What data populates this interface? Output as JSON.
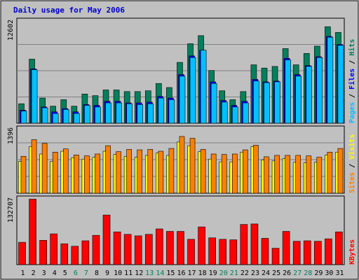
{
  "chart_data": {
    "type": "bar",
    "title": "Daily usage for May 2006",
    "categories": [
      "1",
      "2",
      "3",
      "4",
      "5",
      "6",
      "7",
      "8",
      "9",
      "10",
      "11",
      "12",
      "13",
      "14",
      "15",
      "16",
      "17",
      "18",
      "19",
      "20",
      "21",
      "22",
      "23",
      "24",
      "25",
      "26",
      "27",
      "28",
      "29",
      "30",
      "31"
    ],
    "weekend_days": [
      "6",
      "7",
      "13",
      "14",
      "20",
      "21",
      "27",
      "28"
    ],
    "colors": {
      "background": "#c0c0c0",
      "hits": "#00805c",
      "files": "#0000ff",
      "pages": "#00c0ff",
      "visits": "#ffff00",
      "sites": "#ff8000",
      "kbytes": "#ff0000",
      "title": "#0000cc",
      "weekend_label": "#00805c",
      "weekday_label": "#000000"
    },
    "panels": [
      {
        "name": "hits-files-pages",
        "max_label": "12602",
        "ylim": [
          0,
          12602
        ],
        "legend": [
          "Pages",
          "Files",
          "Hits"
        ],
        "series": [
          {
            "name": "Hits",
            "color": "#00805c",
            "values": [
              2400,
              7900,
              3100,
              2100,
              2900,
              2100,
              3600,
              3400,
              4100,
              4100,
              3900,
              3900,
              4000,
              4900,
              4400,
              7500,
              9800,
              10800,
              6500,
              4000,
              2900,
              3900,
              7200,
              6800,
              7000,
              9200,
              7200,
              8600,
              9500,
              11900,
              11200
            ]
          },
          {
            "name": "Files",
            "color": "#0000ff",
            "values": [
              1600,
              6700,
              2000,
              1400,
              1800,
              1400,
              2300,
              2200,
              2700,
              2700,
              2500,
              2500,
              2600,
              3300,
              3100,
              6000,
              8300,
              9000,
              5100,
              2800,
              2200,
              2700,
              5400,
              5100,
              5200,
              8000,
              6000,
              7100,
              8200,
              10700,
              9700
            ]
          },
          {
            "name": "Pages",
            "color": "#00c0ff",
            "values": [
              1500,
              6600,
              1900,
              1200,
              1700,
              1200,
              2200,
              2000,
              2500,
              2500,
              2400,
              2300,
              2400,
              3100,
              2900,
              5800,
              8100,
              9000,
              4900,
              2600,
              2000,
              2500,
              5200,
              5000,
              5100,
              7800,
              5800,
              7000,
              8100,
              10600,
              9600
            ]
          }
        ]
      },
      {
        "name": "visits-sites",
        "max_label": "1396",
        "ylim": [
          0,
          1396
        ],
        "legend": [
          "Sites",
          "Visits"
        ],
        "series": [
          {
            "name": "Visits",
            "color": "#ffff00",
            "values": [
              690,
              1010,
              850,
              690,
              910,
              770,
              740,
              780,
              910,
              840,
              800,
              780,
              820,
              870,
              820,
              1110,
              1030,
              900,
              740,
              680,
              680,
              890,
              1010,
              720,
              700,
              750,
              670,
              660,
              670,
              830,
              890
            ]
          },
          {
            "name": "Sites",
            "color": "#ff8000",
            "values": [
              800,
              1160,
              1080,
              890,
              960,
              830,
              810,
              850,
              1030,
              900,
              950,
              940,
              950,
              910,
              970,
              1230,
              1190,
              950,
              850,
              840,
              850,
              940,
              1040,
              790,
              820,
              820,
              820,
              810,
              780,
              890,
              970
            ]
          }
        ]
      },
      {
        "name": "kbytes",
        "max_label": "132707",
        "ylim": [
          0,
          132707
        ],
        "legend": [
          "KBytes"
        ],
        "series": [
          {
            "name": "KBytes",
            "color": "#ff0000",
            "values": [
              45000,
              132000,
              49000,
              62000,
              42000,
              37000,
              48000,
              59000,
              100000,
              66000,
              61000,
              58000,
              61000,
              72000,
              67000,
              67000,
              51000,
              76000,
              54000,
              51000,
              50000,
              81000,
              82000,
              53000,
              33000,
              67000,
              47000,
              48000,
              47000,
              52000,
              66000
            ]
          }
        ]
      }
    ]
  }
}
